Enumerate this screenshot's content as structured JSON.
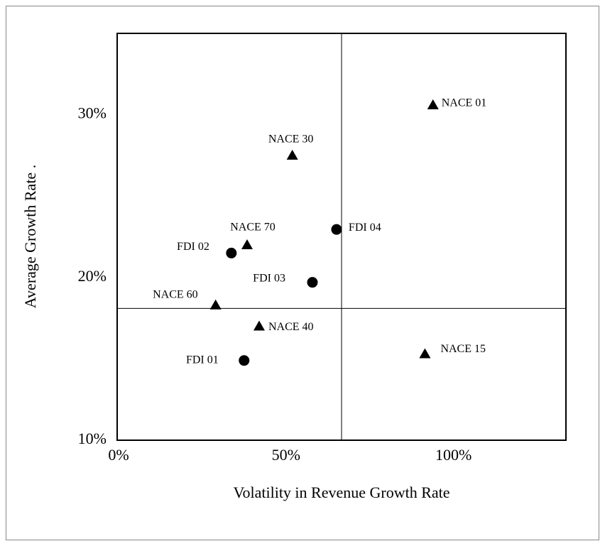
{
  "chart_data": {
    "type": "scatter",
    "x_label": "Volatility in Revenue Growth Rate",
    "y_label": "Average Growth Rate .",
    "xlim": [
      0,
      134
    ],
    "ylim": [
      10,
      35
    ],
    "xticks": [
      {
        "value": 0,
        "label": "0%"
      },
      {
        "value": 50,
        "label": "50%"
      },
      {
        "value": 100,
        "label": "100%"
      }
    ],
    "yticks": [
      {
        "value": 10,
        "label": "10%"
      },
      {
        "value": 20,
        "label": "20%"
      },
      {
        "value": 30,
        "label": "30%"
      }
    ],
    "reference_lines": {
      "x": 67,
      "y": 18.1
    },
    "color": "#000000",
    "points": [
      {
        "label": "NACE 01",
        "x": 94.3,
        "y": 30.6,
        "marker": "triangle"
      },
      {
        "label": "NACE 30",
        "x": 52.3,
        "y": 27.5,
        "marker": "triangle"
      },
      {
        "label": "FDI 04",
        "x": 65.5,
        "y": 22.95,
        "marker": "circle"
      },
      {
        "label": "NACE 70",
        "x": 38.8,
        "y": 22.0,
        "marker": "triangle"
      },
      {
        "label": "FDI 02",
        "x": 34.1,
        "y": 21.5,
        "marker": "circle"
      },
      {
        "label": "FDI 03",
        "x": 58.3,
        "y": 19.7,
        "marker": "circle"
      },
      {
        "label": "NACE 60",
        "x": 29.4,
        "y": 18.3,
        "marker": "triangle"
      },
      {
        "label": "NACE 40",
        "x": 42.4,
        "y": 17.0,
        "marker": "triangle"
      },
      {
        "label": "FDI 01",
        "x": 37.9,
        "y": 14.9,
        "marker": "circle"
      },
      {
        "label": "NACE 15",
        "x": 91.9,
        "y": 15.3,
        "marker": "triangle"
      }
    ]
  }
}
